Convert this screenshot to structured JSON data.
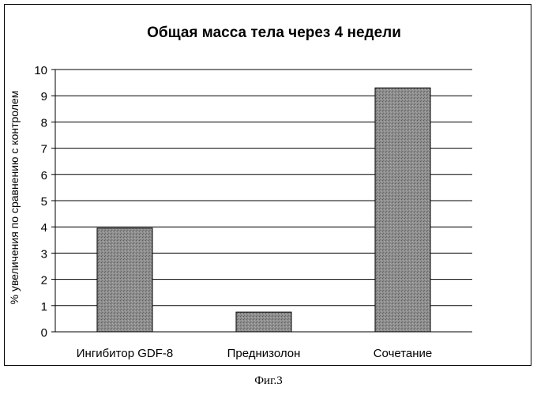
{
  "chart_data": {
    "type": "bar",
    "title": "Общая масса тела через 4 недели",
    "ylabel": "% увеличения по сравнению с контролем",
    "xlabel": "",
    "categories": [
      "Ингибитор GDF-8",
      "Преднизолон",
      "Сочетание"
    ],
    "values": [
      3.95,
      0.75,
      9.3
    ],
    "ylim": [
      0,
      10
    ],
    "yticks": [
      "0",
      "1",
      "2",
      "3",
      "4",
      "5",
      "6",
      "7",
      "8",
      "9",
      "10"
    ],
    "grid": true,
    "legend": "none",
    "bar_color": "#8a8a8a"
  },
  "caption": "Фиг.3"
}
